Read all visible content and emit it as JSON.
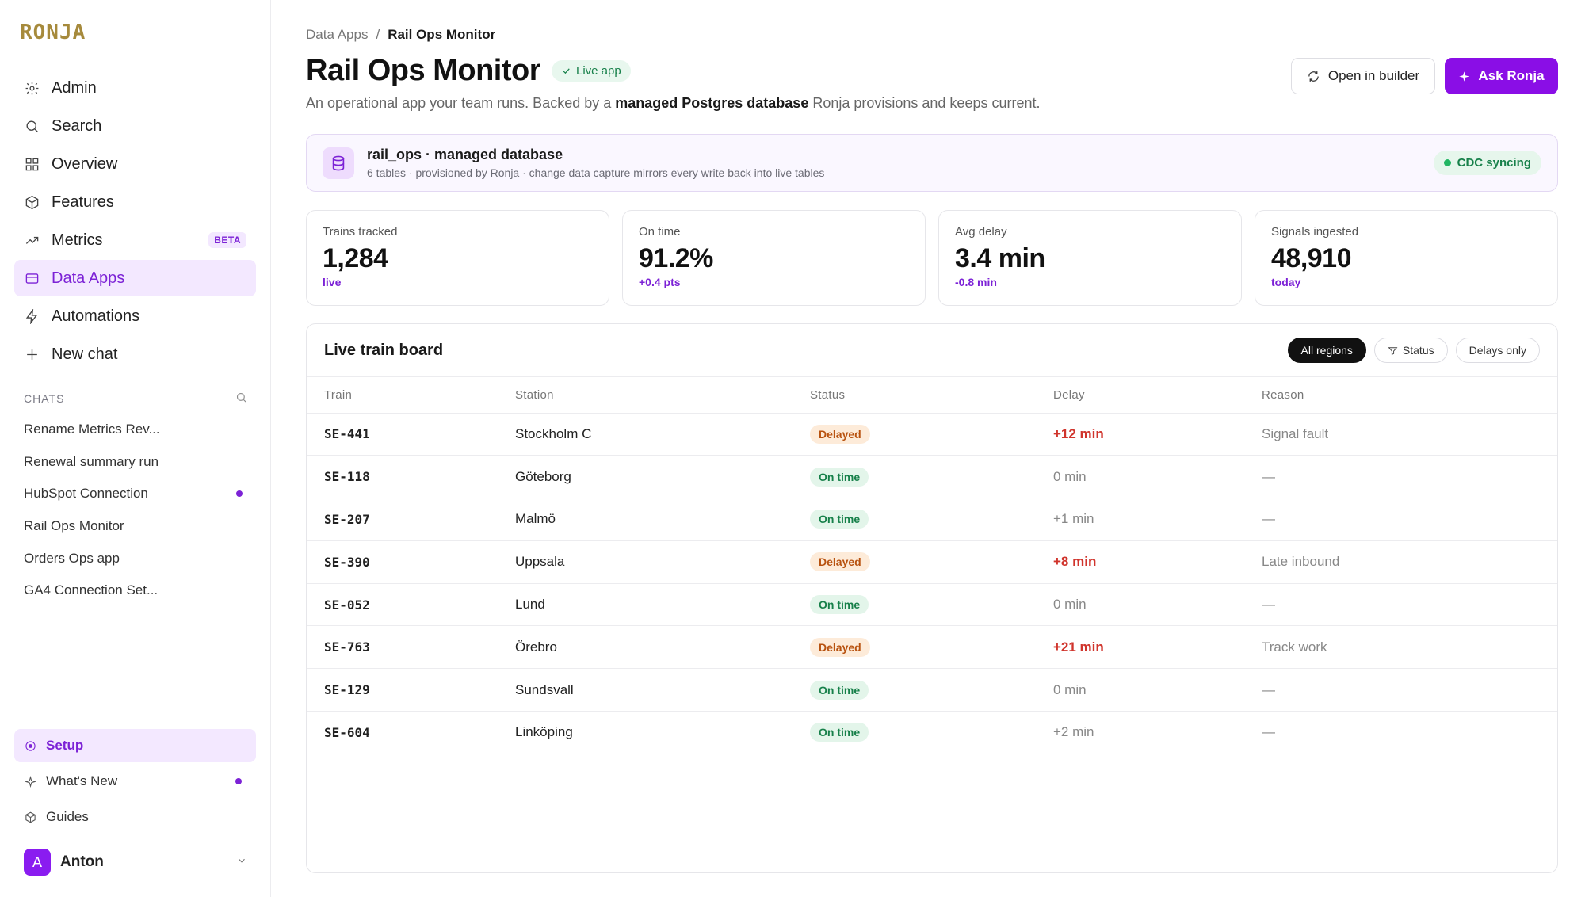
{
  "logo": "RONJA",
  "nav": [
    {
      "label": "Admin",
      "icon": "gear-icon"
    },
    {
      "label": "Search",
      "icon": "search-icon"
    },
    {
      "label": "Overview",
      "icon": "grid-icon"
    },
    {
      "label": "Features",
      "icon": "cube-icon"
    },
    {
      "label": "Metrics",
      "icon": "trend-icon",
      "badge": "BETA"
    },
    {
      "label": "Data Apps",
      "icon": "window-icon",
      "active": true
    },
    {
      "label": "Automations",
      "icon": "bolt-icon"
    },
    {
      "label": "New chat",
      "icon": "plus-icon"
    }
  ],
  "chats": {
    "header": "CHATS",
    "items": [
      {
        "label": "Rename Metrics Rev..."
      },
      {
        "label": "Renewal summary run"
      },
      {
        "label": "HubSpot Connection",
        "unread": true
      },
      {
        "label": "Rail Ops Monitor"
      },
      {
        "label": "Orders Ops app"
      },
      {
        "label": "GA4 Connection Set..."
      }
    ]
  },
  "bottom_nav": [
    {
      "label": "Setup",
      "icon": "target-icon",
      "active": true
    },
    {
      "label": "What's New",
      "icon": "sparkle-icon",
      "unread": true
    },
    {
      "label": "Guides",
      "icon": "cube-icon"
    }
  ],
  "user": {
    "initial": "A",
    "name": "Anton"
  },
  "breadcrumb": {
    "parent": "Data Apps",
    "separator": "/",
    "current": "Rail Ops Monitor"
  },
  "page": {
    "title": "Rail Ops Monitor",
    "badge": "Live app",
    "subtitle_pre": "An operational app your team runs. Backed by a ",
    "subtitle_bold": "managed Postgres database",
    "subtitle_post": " Ronja provisions and keeps current."
  },
  "actions": {
    "builder": "Open in builder",
    "ask": "Ask Ronja"
  },
  "db": {
    "title": "rail_ops · managed database",
    "subtitle": "6 tables · provisioned by Ronja · change data capture mirrors every write back into live tables",
    "status": "CDC syncing"
  },
  "stats": [
    {
      "label": "Trains tracked",
      "value": "1,284",
      "delta": "live"
    },
    {
      "label": "On time",
      "value": "91.2%",
      "delta": "+0.4 pts"
    },
    {
      "label": "Avg delay",
      "value": "3.4 min",
      "delta": "-0.8 min"
    },
    {
      "label": "Signals ingested",
      "value": "48,910",
      "delta": "today"
    }
  ],
  "board": {
    "title": "Live train board",
    "filters": [
      "All regions",
      "Status",
      "Delays only"
    ],
    "columns": [
      "Train",
      "Station",
      "Status",
      "Delay",
      "Reason"
    ],
    "rows": [
      {
        "train": "SE-441",
        "station": "Stockholm C",
        "status": "Delayed",
        "delay": "+12 min",
        "reason": "Signal fault"
      },
      {
        "train": "SE-118",
        "station": "Göteborg",
        "status": "On time",
        "delay": "0 min",
        "reason": "—"
      },
      {
        "train": "SE-207",
        "station": "Malmö",
        "status": "On time",
        "delay": "+1 min",
        "reason": "—"
      },
      {
        "train": "SE-390",
        "station": "Uppsala",
        "status": "Delayed",
        "delay": "+8 min",
        "reason": "Late inbound"
      },
      {
        "train": "SE-052",
        "station": "Lund",
        "status": "On time",
        "delay": "0 min",
        "reason": "—"
      },
      {
        "train": "SE-763",
        "station": "Örebro",
        "status": "Delayed",
        "delay": "+21 min",
        "reason": "Track work"
      },
      {
        "train": "SE-129",
        "station": "Sundsvall",
        "status": "On time",
        "delay": "0 min",
        "reason": "—"
      },
      {
        "train": "SE-604",
        "station": "Linköping",
        "status": "On time",
        "delay": "+2 min",
        "reason": "—"
      }
    ]
  },
  "colors": {
    "accent": "#8a0ee6",
    "accent_soft": "#f3e8ff",
    "success": "#17804a",
    "danger": "#d0342c",
    "warning": "#b8520f"
  }
}
